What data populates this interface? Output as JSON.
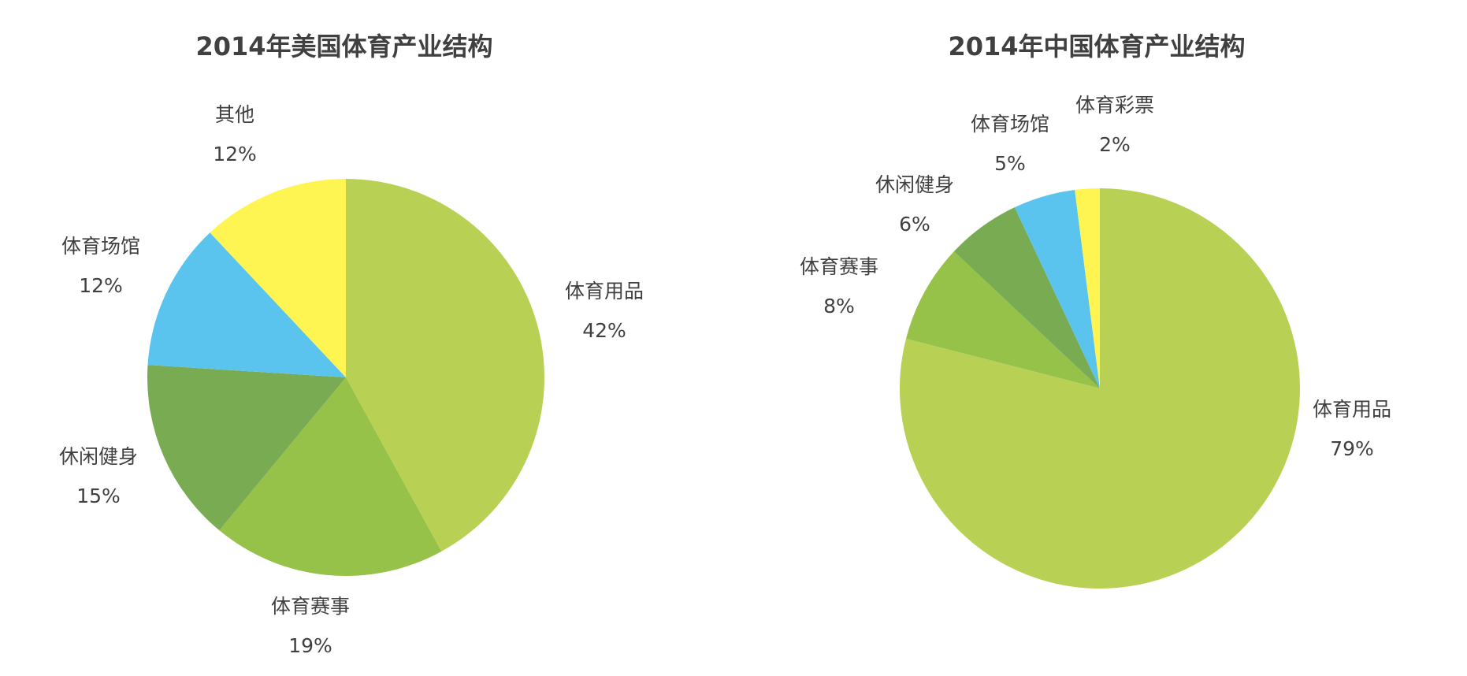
{
  "chart_data": [
    {
      "type": "pie",
      "title": "2014年美国体育产业结构",
      "start": "top",
      "direction": "clockwise",
      "slices": [
        {
          "label": "体育用品",
          "value": 42,
          "display": "42%",
          "color": "#B8D155"
        },
        {
          "label": "体育赛事",
          "value": 19,
          "display": "19%",
          "color": "#97C24A"
        },
        {
          "label": "休闲健身",
          "value": 15,
          "display": "15%",
          "color": "#78AB52"
        },
        {
          "label": "体育场馆",
          "value": 12,
          "display": "12%",
          "color": "#5BC4EE"
        },
        {
          "label": "其他",
          "value": 12,
          "display": "12%",
          "color": "#FEF552"
        }
      ]
    },
    {
      "type": "pie",
      "title": "2014年中国体育产业结构",
      "start": "top",
      "direction": "clockwise",
      "slices": [
        {
          "label": "体育用品",
          "value": 79,
          "display": "79%",
          "color": "#B8D155"
        },
        {
          "label": "体育赛事",
          "value": 8,
          "display": "8%",
          "color": "#97C24A"
        },
        {
          "label": "休闲健身",
          "value": 6,
          "display": "6%",
          "color": "#78AB52"
        },
        {
          "label": "体育场馆",
          "value": 5,
          "display": "5%",
          "color": "#5BC4EE"
        },
        {
          "label": "体育彩票",
          "value": 2,
          "display": "2%",
          "color": "#FEF552"
        }
      ]
    }
  ]
}
